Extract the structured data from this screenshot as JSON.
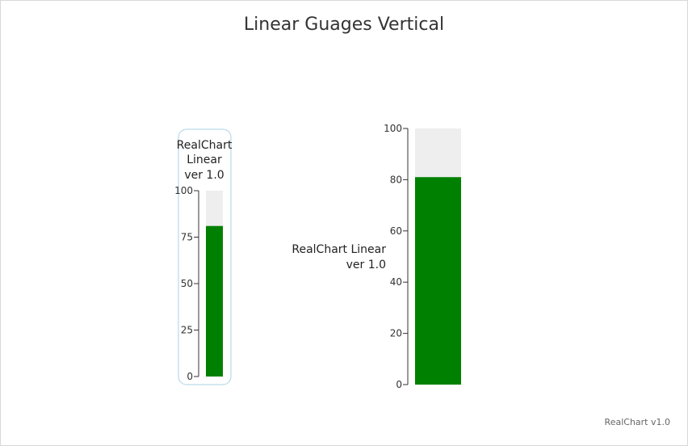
{
  "chart": {
    "title": "Linear Guages Vertical",
    "credits": "RealChart v1.0"
  },
  "colors": {
    "bar": "#008000",
    "track": "#eeeeee",
    "axis": "#333333",
    "panel_border": "#a9d3e6"
  },
  "chart_data": [
    {
      "type": "bar",
      "orientation": "vertical",
      "label": [
        "RealChart",
        "Linear",
        "ver 1.0"
      ],
      "value": 81,
      "ylim": [
        0,
        100
      ],
      "ticks": [
        0,
        25,
        50,
        75,
        100
      ]
    },
    {
      "type": "bar",
      "orientation": "vertical",
      "label": [
        "RealChart Linear",
        "ver 1.0"
      ],
      "value": 81,
      "ylim": [
        0,
        100
      ],
      "ticks": [
        0,
        20,
        40,
        60,
        80,
        100
      ]
    }
  ]
}
